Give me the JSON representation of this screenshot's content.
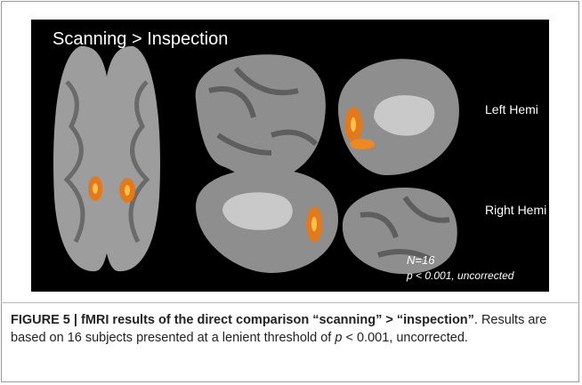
{
  "figure": {
    "panel_title": "Scanning > Inspection",
    "labels": [
      "Left Hemi",
      "Right Hemi"
    ],
    "stats": {
      "n": "N=16",
      "p": "p < 0.001, uncorrected"
    }
  },
  "caption": {
    "label": "FIGURE 5 | fMRI results of the direct comparison “scanning” > “inspection”",
    "text": [
      ". Results are based on 16 subjects presented at a lenient threshold of ",
      "p",
      " < 0.001, uncorrected."
    ]
  }
}
